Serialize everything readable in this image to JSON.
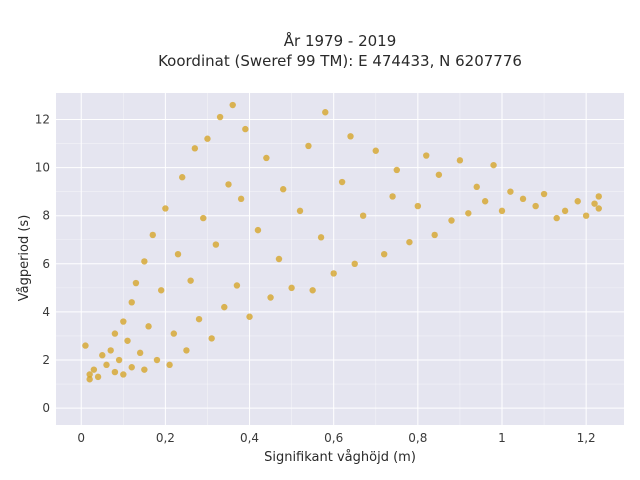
{
  "chart_data": {
    "type": "scatter",
    "title_lines": [
      "År 1979 - 2019",
      "Koordinat (Sweref 99 TM): E 474433, N 6207776"
    ],
    "xlabel": "Signifikant våghöjd (m)",
    "ylabel": "Vågperiod (s)",
    "xlim": [
      -0.06,
      1.29
    ],
    "ylim": [
      -0.7,
      13.1
    ],
    "x_ticks": [
      0,
      0.2,
      0.4,
      0.6,
      0.8,
      1,
      1.2
    ],
    "x_tick_labels": [
      "0",
      "0,2",
      "0,4",
      "0,6",
      "0,8",
      "1",
      "1,2"
    ],
    "y_ticks": [
      0,
      2,
      4,
      6,
      8,
      10,
      12
    ],
    "y_tick_labels": [
      "0",
      "2",
      "4",
      "6",
      "8",
      "10",
      "12"
    ],
    "grid": true,
    "colors": {
      "plot_background": "#e5e5f0",
      "marker": "#d4a01e",
      "grid": "#ffffff"
    },
    "series": [
      {
        "marker_color": "#d4a01e",
        "points": [
          [
            0.01,
            2.6
          ],
          [
            0.02,
            1.4
          ],
          [
            0.02,
            1.2
          ],
          [
            0.03,
            1.6
          ],
          [
            0.04,
            1.3
          ],
          [
            0.05,
            2.2
          ],
          [
            0.06,
            1.8
          ],
          [
            0.07,
            2.4
          ],
          [
            0.08,
            1.5
          ],
          [
            0.08,
            3.1
          ],
          [
            0.09,
            2.0
          ],
          [
            0.1,
            1.4
          ],
          [
            0.1,
            3.6
          ],
          [
            0.11,
            2.8
          ],
          [
            0.12,
            1.7
          ],
          [
            0.12,
            4.4
          ],
          [
            0.13,
            5.2
          ],
          [
            0.14,
            2.3
          ],
          [
            0.15,
            1.6
          ],
          [
            0.15,
            6.1
          ],
          [
            0.16,
            3.4
          ],
          [
            0.17,
            7.2
          ],
          [
            0.18,
            2.0
          ],
          [
            0.19,
            4.9
          ],
          [
            0.2,
            8.3
          ],
          [
            0.21,
            1.8
          ],
          [
            0.22,
            3.1
          ],
          [
            0.23,
            6.4
          ],
          [
            0.24,
            9.6
          ],
          [
            0.25,
            2.4
          ],
          [
            0.26,
            5.3
          ],
          [
            0.27,
            10.8
          ],
          [
            0.28,
            3.7
          ],
          [
            0.29,
            7.9
          ],
          [
            0.3,
            11.2
          ],
          [
            0.31,
            2.9
          ],
          [
            0.32,
            6.8
          ],
          [
            0.33,
            12.1
          ],
          [
            0.34,
            4.2
          ],
          [
            0.35,
            9.3
          ],
          [
            0.36,
            12.6
          ],
          [
            0.37,
            5.1
          ],
          [
            0.38,
            8.7
          ],
          [
            0.39,
            11.6
          ],
          [
            0.4,
            3.8
          ],
          [
            0.42,
            7.4
          ],
          [
            0.44,
            10.4
          ],
          [
            0.45,
            4.6
          ],
          [
            0.47,
            6.2
          ],
          [
            0.48,
            9.1
          ],
          [
            0.5,
            5.0
          ],
          [
            0.52,
            8.2
          ],
          [
            0.54,
            10.9
          ],
          [
            0.55,
            4.9
          ],
          [
            0.57,
            7.1
          ],
          [
            0.58,
            12.3
          ],
          [
            0.6,
            5.6
          ],
          [
            0.62,
            9.4
          ],
          [
            0.64,
            11.3
          ],
          [
            0.65,
            6.0
          ],
          [
            0.67,
            8.0
          ],
          [
            0.7,
            10.7
          ],
          [
            0.72,
            6.4
          ],
          [
            0.74,
            8.8
          ],
          [
            0.75,
            9.9
          ],
          [
            0.78,
            6.9
          ],
          [
            0.8,
            8.4
          ],
          [
            0.82,
            10.5
          ],
          [
            0.84,
            7.2
          ],
          [
            0.85,
            9.7
          ],
          [
            0.88,
            7.8
          ],
          [
            0.9,
            10.3
          ],
          [
            0.92,
            8.1
          ],
          [
            0.94,
            9.2
          ],
          [
            0.96,
            8.6
          ],
          [
            0.98,
            10.1
          ],
          [
            1.0,
            8.2
          ],
          [
            1.02,
            9.0
          ],
          [
            1.05,
            8.7
          ],
          [
            1.08,
            8.4
          ],
          [
            1.1,
            8.9
          ],
          [
            1.13,
            7.9
          ],
          [
            1.15,
            8.2
          ],
          [
            1.18,
            8.6
          ],
          [
            1.2,
            8.0
          ],
          [
            1.22,
            8.5
          ],
          [
            1.23,
            8.8
          ],
          [
            1.23,
            8.3
          ]
        ]
      }
    ]
  }
}
